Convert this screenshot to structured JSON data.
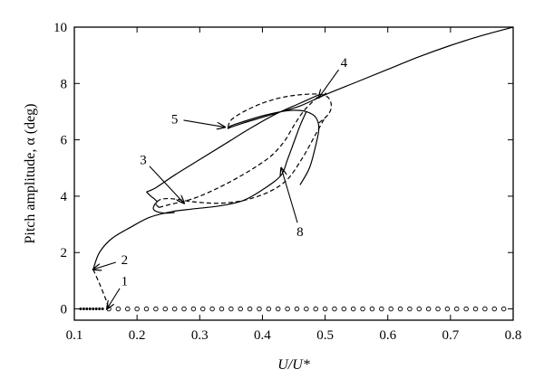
{
  "chart_data": {
    "type": "line",
    "title": "",
    "xlabel": "U/U*",
    "ylabel": "Pitch amplitude, α (deg)",
    "xlim": [
      0.1,
      0.8
    ],
    "ylim": [
      -0.4,
      10
    ],
    "x_ticks": [
      "0.1",
      "0.2",
      "0.3",
      "0.4",
      "0.5",
      "0.6",
      "0.7",
      "0.8"
    ],
    "y_ticks": [
      "0",
      "2",
      "4",
      "6",
      "8",
      "10"
    ],
    "grid": false,
    "legend": "none",
    "series": [
      {
        "style": "solid",
        "x": [
          0.13,
          0.14,
          0.16,
          0.19,
          0.22,
          0.255,
          0.29,
          0.33,
          0.37,
          0.405,
          0.43,
          0.44,
          0.45,
          0.46,
          0.47
        ],
        "y": [
          1.4,
          2.0,
          2.5,
          2.9,
          3.25,
          3.45,
          3.55,
          3.65,
          3.85,
          4.3,
          4.75,
          5.3,
          5.9,
          6.5,
          7.0
        ]
      },
      {
        "style": "solid",
        "x": [
          0.46,
          0.475,
          0.485,
          0.49,
          0.485,
          0.47,
          0.45,
          0.43,
          0.4,
          0.37,
          0.35,
          0.345,
          0.35,
          0.37,
          0.4,
          0.43,
          0.46,
          0.5,
          0.55,
          0.6,
          0.65,
          0.7,
          0.75,
          0.8
        ],
        "y": [
          4.4,
          5.0,
          5.8,
          6.4,
          6.8,
          7.0,
          7.05,
          7.0,
          6.85,
          6.65,
          6.5,
          6.4,
          6.45,
          6.6,
          6.8,
          7.0,
          7.2,
          7.6,
          8.05,
          8.5,
          8.95,
          9.35,
          9.7,
          10.0
        ]
      },
      {
        "style": "solid",
        "x": [
          0.215,
          0.23,
          0.26,
          0.3,
          0.34,
          0.38,
          0.42,
          0.46,
          0.49
        ],
        "y": [
          4.15,
          4.3,
          4.75,
          5.3,
          5.85,
          6.4,
          6.9,
          7.3,
          7.6
        ]
      },
      {
        "style": "solid",
        "x": [
          0.215,
          0.222,
          0.228,
          0.23,
          0.232,
          0.228,
          0.226,
          0.232,
          0.245,
          0.26
        ],
        "y": [
          4.15,
          4.0,
          3.9,
          3.85,
          3.8,
          3.7,
          3.55,
          3.45,
          3.4,
          3.42
        ]
      },
      {
        "style": "dashed",
        "x": [
          0.13,
          0.14,
          0.15,
          0.155
        ],
        "y": [
          1.4,
          0.9,
          0.35,
          0.0
        ]
      },
      {
        "style": "dashed",
        "x": [
          0.235,
          0.255,
          0.275,
          0.3,
          0.33,
          0.36,
          0.39,
          0.415,
          0.435,
          0.45,
          0.465,
          0.48,
          0.49
        ],
        "y": [
          3.6,
          3.72,
          3.82,
          4.0,
          4.3,
          4.65,
          5.05,
          5.45,
          5.95,
          6.5,
          7.0,
          7.35,
          7.55
        ]
      },
      {
        "style": "dashed",
        "x": [
          0.235,
          0.23,
          0.24,
          0.26,
          0.29,
          0.33,
          0.37,
          0.41,
          0.44,
          0.465,
          0.485,
          0.5
        ],
        "y": [
          3.6,
          3.75,
          3.9,
          3.9,
          3.8,
          3.75,
          3.85,
          4.15,
          4.6,
          5.4,
          6.2,
          6.8
        ]
      },
      {
        "style": "dashed",
        "x": [
          0.345,
          0.35,
          0.37,
          0.4,
          0.43,
          0.46,
          0.49,
          0.505,
          0.51,
          0.505,
          0.49
        ],
        "y": [
          6.45,
          6.7,
          7.0,
          7.3,
          7.5,
          7.6,
          7.62,
          7.5,
          7.2,
          6.9,
          6.6
        ]
      },
      {
        "style": "dotted",
        "x": [
          0.11,
          0.115,
          0.12,
          0.125,
          0.13,
          0.135,
          0.14,
          0.145
        ],
        "y": [
          0,
          0,
          0,
          0,
          0,
          0,
          0,
          0
        ]
      },
      {
        "style": "open-circles",
        "x": [
          0.155,
          0.17,
          0.185,
          0.2,
          0.215,
          0.23,
          0.245,
          0.26,
          0.275,
          0.29,
          0.305,
          0.32,
          0.335,
          0.35,
          0.365,
          0.38,
          0.395,
          0.41,
          0.425,
          0.44,
          0.455,
          0.47,
          0.485,
          0.5,
          0.515,
          0.53,
          0.545,
          0.56,
          0.575,
          0.59,
          0.605,
          0.62,
          0.635,
          0.65,
          0.665,
          0.68,
          0.695,
          0.71,
          0.725,
          0.74,
          0.755,
          0.77,
          0.785
        ],
        "y": [
          0,
          0,
          0,
          0,
          0,
          0,
          0,
          0,
          0,
          0,
          0,
          0,
          0,
          0,
          0,
          0,
          0,
          0,
          0,
          0,
          0,
          0,
          0,
          0,
          0,
          0,
          0,
          0,
          0,
          0,
          0,
          0,
          0,
          0,
          0,
          0,
          0,
          0,
          0,
          0,
          0,
          0,
          0
        ]
      }
    ],
    "annotations": [
      {
        "text": "1",
        "label_x": 0.18,
        "label_y": 1.0,
        "point_x": 0.152,
        "point_y": 0.0
      },
      {
        "text": "2",
        "label_x": 0.18,
        "label_y": 1.75,
        "point_x": 0.13,
        "point_y": 1.4
      },
      {
        "text": "3",
        "label_x": 0.21,
        "label_y": 5.3,
        "point_x": 0.275,
        "point_y": 3.75
      },
      {
        "text": "4",
        "label_x": 0.53,
        "label_y": 8.75,
        "point_x": 0.49,
        "point_y": 7.5
      },
      {
        "text": "5",
        "label_x": 0.26,
        "label_y": 6.75,
        "point_x": 0.34,
        "point_y": 6.45
      },
      {
        "text": "8",
        "label_x": 0.46,
        "label_y": 2.75,
        "point_x": 0.43,
        "point_y": 5.0
      }
    ]
  }
}
